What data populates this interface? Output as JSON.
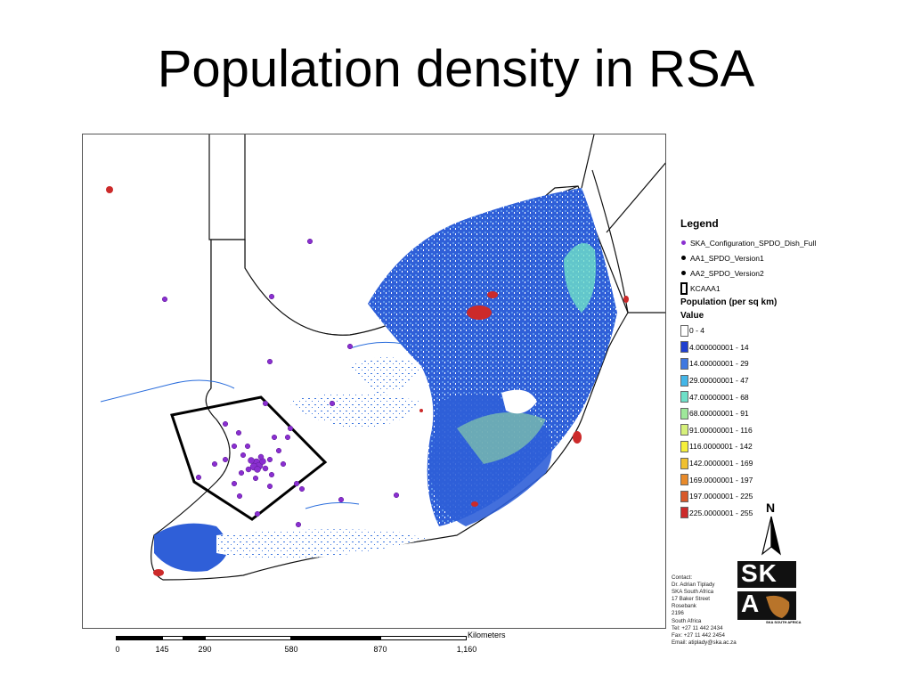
{
  "title": "Population density in RSA",
  "map": {
    "colors": {
      "border": "#111111",
      "water": "#2a6ddc",
      "density_low": "#2a5bd8",
      "density_mid": "#4a90e2",
      "density_high": "#7fd8b0",
      "urban": "#d43a2a",
      "aoi_points": "#8a2fd0"
    }
  },
  "legend": {
    "title": "Legend",
    "point_layers": [
      {
        "label": "SKA_Configuration_SPDO_Dish_Full",
        "color": "#8a2fd0"
      },
      {
        "label": "AA1_SPDO_Version1",
        "color": "#000000"
      },
      {
        "label": "AA2_SPDO_Version2",
        "color": "#000000"
      }
    ],
    "boundary_label": "KCAAA1",
    "population_title": "Population (per sq km)",
    "value_label": "Value",
    "classes": [
      {
        "label": "0 - 4",
        "color": "#ffffff"
      },
      {
        "label": "4.000000001 - 14",
        "color": "#1f3fd0"
      },
      {
        "label": "14.00000001 - 29",
        "color": "#3f78e0"
      },
      {
        "label": "29.00000001 - 47",
        "color": "#43b6e8"
      },
      {
        "label": "47.00000001 - 68",
        "color": "#6fe0c8"
      },
      {
        "label": "68.00000001 - 91",
        "color": "#9ee89a"
      },
      {
        "label": "91.00000001 - 116",
        "color": "#d6f07a"
      },
      {
        "label": "116.0000001 - 142",
        "color": "#f5f03a"
      },
      {
        "label": "142.0000001 - 169",
        "color": "#f0c030"
      },
      {
        "label": "169.0000001 - 197",
        "color": "#e88a2a"
      },
      {
        "label": "197.0000001 - 225",
        "color": "#d8582a"
      },
      {
        "label": "225.0000001 - 255",
        "color": "#cc2a2a"
      }
    ]
  },
  "scale_bar": {
    "unit": "Kilometers",
    "ticks": [
      "0",
      "145",
      "290",
      "580",
      "870",
      "1,160"
    ]
  },
  "north_arrow": {
    "label": "N"
  },
  "contact": {
    "lines": [
      "Contact:",
      "Dr. Adrian Tiplady",
      "SKA South Africa",
      "17 Baker Street",
      "Rosebank",
      "2196",
      "South Africa",
      "Tel: +27 11 442 2434",
      "Fax: +27 11 442 2454",
      "Email: atiplady@ska.ac.za"
    ]
  },
  "logo": {
    "text_top": "SK",
    "text_bottom": "A",
    "caption": "SKA SOUTH AFRICA"
  }
}
